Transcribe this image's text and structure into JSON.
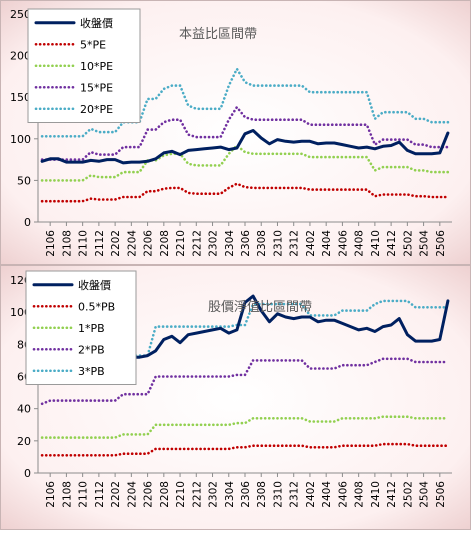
{
  "chart_data": [
    {
      "type": "line",
      "title": "本益比區間帶",
      "x": [
        "2105",
        "2106",
        "2107",
        "2108",
        "2109",
        "2110",
        "2111",
        "2112",
        "2201",
        "2202",
        "2203",
        "2204",
        "2205",
        "2206",
        "2207",
        "2208",
        "2209",
        "2210",
        "2211",
        "2212",
        "2301",
        "2302",
        "2303",
        "2304",
        "2305",
        "2306",
        "2307",
        "2308",
        "2309",
        "2310",
        "2311",
        "2312",
        "2401",
        "2402",
        "2403",
        "2404",
        "2405",
        "2406",
        "2407",
        "2408",
        "2409",
        "2410",
        "2411",
        "2412",
        "2501",
        "2502",
        "2503",
        "2504",
        "2505",
        "2506",
        "2507"
      ],
      "x_tick_labels": [
        "2106",
        "2108",
        "2110",
        "2112",
        "2202",
        "2204",
        "2206",
        "2208",
        "2210",
        "2212",
        "2302",
        "2304",
        "2306",
        "2308",
        "2310",
        "2312",
        "2402",
        "2404",
        "2406",
        "2408",
        "2410",
        "2412",
        "2502",
        "2504",
        "2506"
      ],
      "ylim": [
        0,
        250
      ],
      "y_ticks": [
        0,
        50,
        100,
        150,
        200,
        250
      ],
      "legend_position": "top-left",
      "grid": false,
      "series": [
        {
          "name": "收盤價",
          "style": "solid",
          "color": "#002060",
          "values": [
            73,
            76,
            76,
            72,
            72,
            72,
            74,
            73,
            75,
            75,
            71,
            72,
            72,
            73,
            76,
            83,
            85,
            81,
            86,
            87,
            88,
            89,
            90,
            87,
            89,
            106,
            110,
            101,
            94,
            99,
            97,
            96,
            97,
            97,
            94,
            95,
            95,
            93,
            91,
            89,
            90,
            88,
            91,
            92,
            96,
            86,
            82,
            82,
            82,
            83,
            107
          ]
        },
        {
          "name": "5*PE",
          "style": "dotted",
          "color": "#c00000",
          "values": [
            25,
            25,
            25,
            25,
            25,
            25,
            28,
            27,
            27,
            27,
            30,
            30,
            30,
            37,
            37,
            40,
            41,
            41,
            35,
            34,
            34,
            34,
            34,
            41,
            46,
            42,
            41,
            41,
            41,
            41,
            41,
            41,
            41,
            39,
            39,
            39,
            39,
            39,
            39,
            39,
            39,
            31,
            33,
            33,
            33,
            33,
            31,
            31,
            30,
            30,
            30
          ]
        },
        {
          "name": "10*PE",
          "style": "dotted",
          "color": "#92d050",
          "values": [
            50,
            50,
            50,
            50,
            50,
            50,
            56,
            54,
            54,
            54,
            60,
            60,
            60,
            74,
            74,
            80,
            82,
            82,
            70,
            68,
            68,
            68,
            68,
            82,
            92,
            84,
            82,
            82,
            82,
            82,
            82,
            82,
            82,
            78,
            78,
            78,
            78,
            78,
            78,
            78,
            78,
            62,
            66,
            66,
            66,
            66,
            62,
            62,
            60,
            60,
            60
          ]
        },
        {
          "name": "15*PE",
          "style": "dotted",
          "color": "#7030a0",
          "values": [
            75,
            75,
            75,
            75,
            75,
            75,
            84,
            81,
            81,
            81,
            90,
            90,
            90,
            111,
            111,
            120,
            123,
            123,
            105,
            102,
            102,
            102,
            102,
            123,
            138,
            126,
            123,
            123,
            123,
            123,
            123,
            123,
            123,
            117,
            117,
            117,
            117,
            117,
            117,
            117,
            117,
            93,
            99,
            99,
            99,
            99,
            93,
            93,
            90,
            90,
            90
          ]
        },
        {
          "name": "20*PE",
          "style": "dotted",
          "color": "#4bacc6",
          "values": [
            103,
            103,
            103,
            103,
            103,
            103,
            112,
            108,
            108,
            108,
            120,
            120,
            120,
            148,
            148,
            160,
            164,
            164,
            140,
            136,
            136,
            136,
            136,
            164,
            184,
            168,
            164,
            164,
            164,
            164,
            164,
            164,
            164,
            156,
            156,
            156,
            156,
            156,
            156,
            156,
            156,
            124,
            132,
            132,
            132,
            132,
            124,
            124,
            120,
            120,
            120
          ]
        }
      ]
    },
    {
      "type": "line",
      "title": "股價淨值比區間帶",
      "x": [
        "2105",
        "2106",
        "2107",
        "2108",
        "2109",
        "2110",
        "2111",
        "2112",
        "2201",
        "2202",
        "2203",
        "2204",
        "2205",
        "2206",
        "2207",
        "2208",
        "2209",
        "2210",
        "2211",
        "2212",
        "2301",
        "2302",
        "2303",
        "2304",
        "2305",
        "2306",
        "2307",
        "2308",
        "2309",
        "2310",
        "2311",
        "2312",
        "2401",
        "2402",
        "2403",
        "2404",
        "2405",
        "2406",
        "2407",
        "2408",
        "2409",
        "2410",
        "2411",
        "2412",
        "2501",
        "2502",
        "2503",
        "2504",
        "2505",
        "2506",
        "2507"
      ],
      "x_tick_labels": [
        "2106",
        "2108",
        "2110",
        "2112",
        "2202",
        "2204",
        "2206",
        "2208",
        "2210",
        "2212",
        "2302",
        "2304",
        "2306",
        "2308",
        "2310",
        "2312",
        "2402",
        "2404",
        "2406",
        "2408",
        "2410",
        "2412",
        "2502",
        "2504",
        "2506"
      ],
      "ylim": [
        0,
        120
      ],
      "y_ticks": [
        0,
        20,
        40,
        60,
        80,
        100,
        120
      ],
      "legend_position": "top-left",
      "grid": false,
      "series": [
        {
          "name": "收盤價",
          "style": "solid",
          "color": "#002060",
          "values": [
            73,
            76,
            76,
            72,
            72,
            72,
            74,
            73,
            75,
            75,
            71,
            72,
            72,
            73,
            76,
            83,
            85,
            81,
            86,
            87,
            88,
            89,
            90,
            87,
            89,
            106,
            110,
            101,
            94,
            99,
            97,
            96,
            97,
            97,
            94,
            95,
            95,
            93,
            91,
            89,
            90,
            88,
            91,
            92,
            96,
            86,
            82,
            82,
            82,
            83,
            107
          ]
        },
        {
          "name": "0.5*PB",
          "style": "dotted",
          "color": "#c00000",
          "values": [
            11,
            11,
            11,
            11,
            11,
            11,
            11,
            11,
            11,
            11,
            12,
            12,
            12,
            12,
            15,
            15,
            15,
            15,
            15,
            15,
            15,
            15,
            15,
            15,
            16,
            16,
            17,
            17,
            17,
            17,
            17,
            17,
            17,
            16,
            16,
            16,
            16,
            17,
            17,
            17,
            17,
            17,
            18,
            18,
            18,
            18,
            17,
            17,
            17,
            17,
            17
          ]
        },
        {
          "name": "1*PB",
          "style": "dotted",
          "color": "#92d050",
          "values": [
            22,
            22,
            22,
            22,
            22,
            22,
            22,
            22,
            22,
            22,
            24,
            24,
            24,
            24,
            30,
            30,
            30,
            30,
            30,
            30,
            30,
            30,
            30,
            30,
            31,
            31,
            34,
            34,
            34,
            34,
            34,
            34,
            34,
            32,
            32,
            32,
            32,
            34,
            34,
            34,
            34,
            34,
            35,
            35,
            35,
            35,
            34,
            34,
            34,
            34,
            34
          ]
        },
        {
          "name": "2*PB",
          "style": "dotted",
          "color": "#7030a0",
          "values": [
            43,
            45,
            45,
            45,
            45,
            45,
            45,
            45,
            45,
            45,
            49,
            49,
            49,
            49,
            60,
            60,
            60,
            60,
            60,
            60,
            60,
            60,
            60,
            60,
            61,
            61,
            70,
            70,
            70,
            70,
            70,
            70,
            70,
            65,
            65,
            65,
            65,
            67,
            67,
            67,
            67,
            69,
            71,
            71,
            71,
            71,
            69,
            69,
            69,
            69,
            69
          ]
        },
        {
          "name": "3*PB",
          "style": "dotted",
          "color": "#4bacc6",
          "values": [
            65,
            68,
            68,
            68,
            68,
            68,
            68,
            68,
            68,
            68,
            73,
            73,
            73,
            73,
            91,
            91,
            91,
            91,
            91,
            91,
            91,
            91,
            91,
            91,
            92,
            92,
            105,
            105,
            105,
            105,
            105,
            105,
            105,
            98,
            98,
            98,
            98,
            101,
            101,
            101,
            101,
            105,
            107,
            107,
            107,
            107,
            103,
            103,
            103,
            103,
            103
          ]
        }
      ]
    }
  ]
}
